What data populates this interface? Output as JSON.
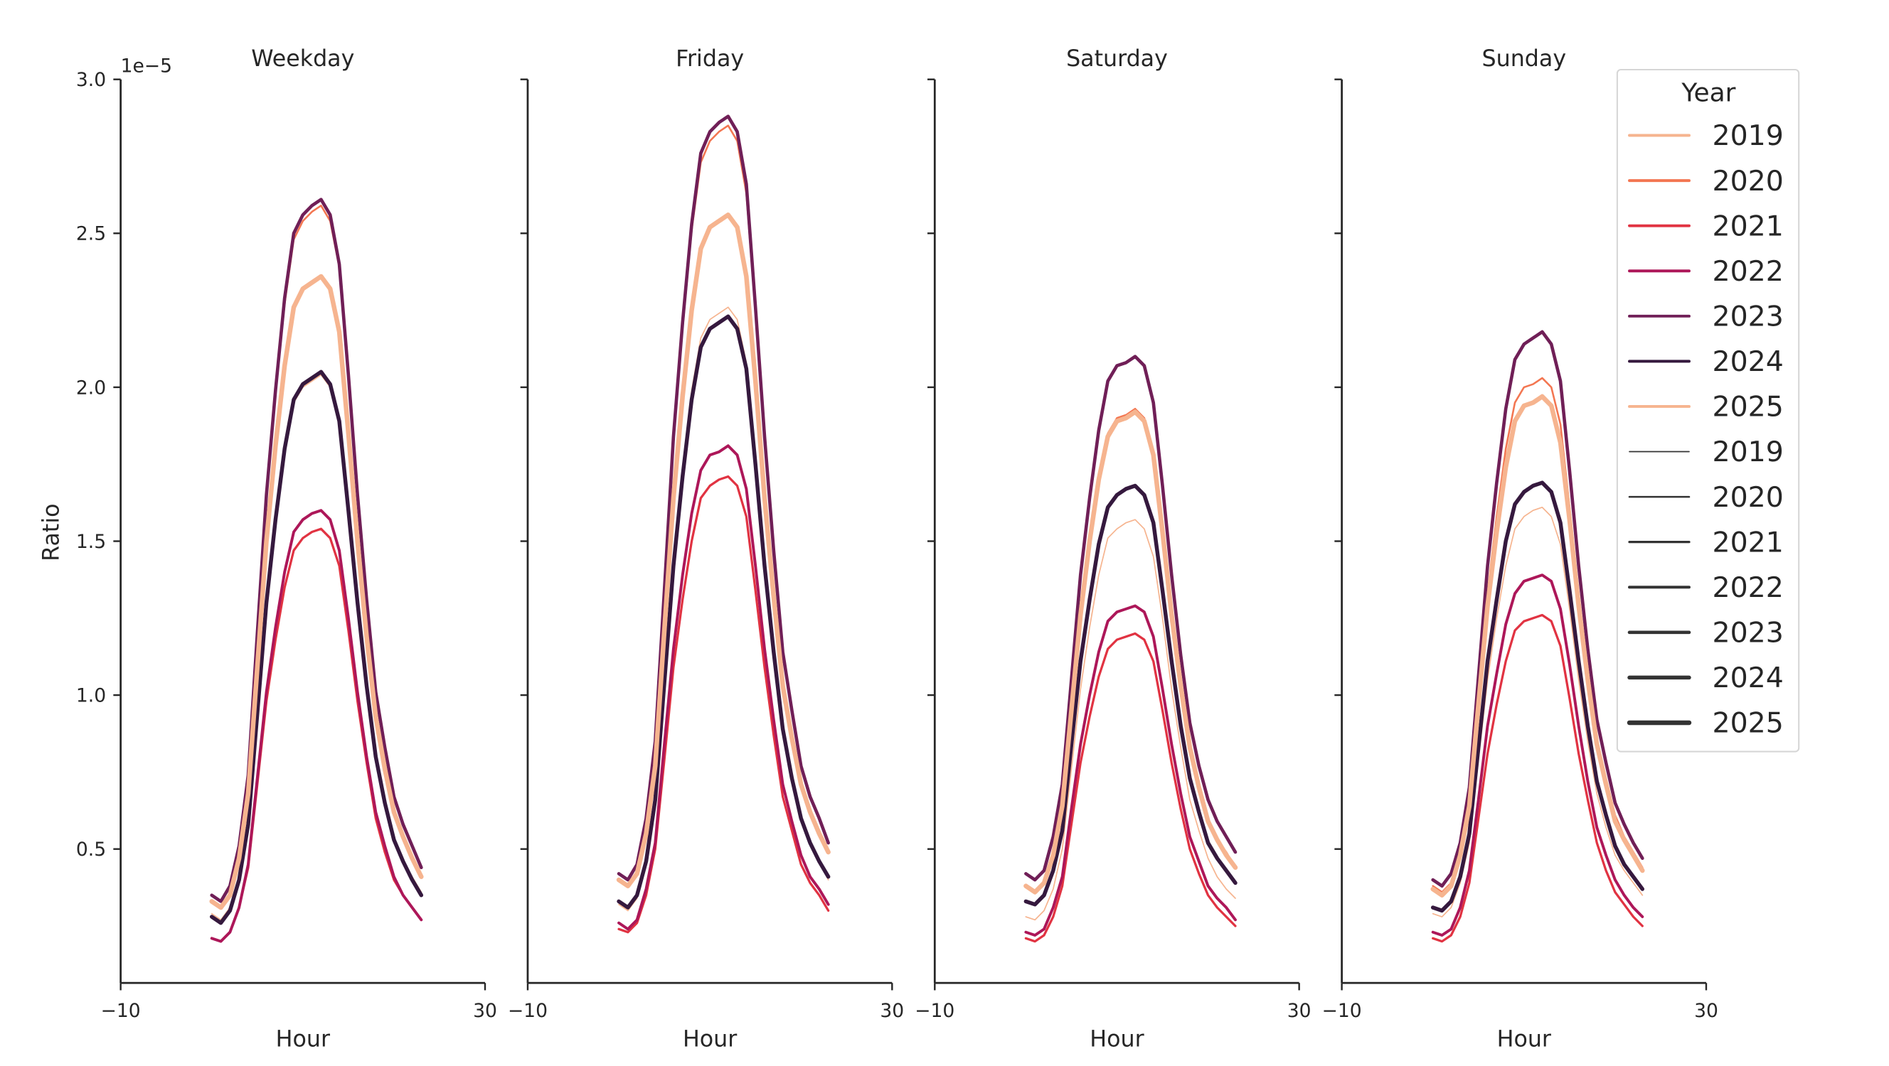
{
  "chart_data": {
    "type": "line",
    "ylabel": "Ratio",
    "xlabel": "Hour",
    "y_offset_label": "1e−5",
    "xlim": [
      -10,
      30
    ],
    "ylim": [
      0.065,
      3.0
    ],
    "xticks": [
      "−10",
      "30"
    ],
    "xtick_values": [
      -10,
      30
    ],
    "yticks": [
      "0.5",
      "1.0",
      "1.5",
      "2.0",
      "2.5",
      "3.0"
    ],
    "ytick_values": [
      0.5,
      1.0,
      1.5,
      2.0,
      2.5,
      3.0
    ],
    "grid": false,
    "legend": {
      "title": "Year",
      "placement": "top-right",
      "hue_entries": [
        {
          "label": "2019",
          "color": "#f6b48f"
        },
        {
          "label": "2020",
          "color": "#f37651"
        },
        {
          "label": "2021",
          "color": "#e13342"
        },
        {
          "label": "2022",
          "color": "#ad1759"
        },
        {
          "label": "2023",
          "color": "#701f57"
        },
        {
          "label": "2024",
          "color": "#35193e"
        },
        {
          "label": "2025",
          "color": "#f6b48f"
        }
      ],
      "size_entries": [
        {
          "label": "2019",
          "color": "#333333"
        },
        {
          "label": "2020",
          "color": "#333333"
        },
        {
          "label": "2021",
          "color": "#333333"
        },
        {
          "label": "2022",
          "color": "#333333"
        },
        {
          "label": "2023",
          "color": "#333333"
        },
        {
          "label": "2024",
          "color": "#333333"
        },
        {
          "label": "2025",
          "color": "#333333"
        }
      ]
    },
    "x": [
      0,
      1,
      2,
      3,
      4,
      5,
      6,
      7,
      8,
      9,
      10,
      11,
      12,
      13,
      14,
      15,
      16,
      17,
      18,
      19,
      20,
      21,
      22,
      23
    ],
    "panels": [
      {
        "title": "Weekday",
        "series": [
          {
            "name": "2019",
            "values": [
              0.29,
              0.27,
              0.31,
              0.41,
              0.59,
              0.94,
              1.3,
              1.56,
              1.79,
              1.95,
              2.0,
              2.02,
              2.04,
              2.0,
              1.88,
              1.6,
              1.3,
              1.03,
              0.8,
              0.66,
              0.54,
              0.46,
              0.41,
              0.36
            ]
          },
          {
            "name": "2020",
            "values": [
              0.35,
              0.33,
              0.38,
              0.51,
              0.74,
              1.19,
              1.64,
              1.98,
              2.27,
              2.48,
              2.54,
              2.57,
              2.59,
              2.54,
              2.39,
              2.03,
              1.64,
              1.3,
              1.01,
              0.83,
              0.67,
              0.58,
              0.51,
              0.44
            ]
          },
          {
            "name": "2021",
            "values": [
              0.21,
              0.2,
              0.23,
              0.31,
              0.44,
              0.71,
              0.98,
              1.18,
              1.35,
              1.47,
              1.51,
              1.53,
              1.54,
              1.51,
              1.42,
              1.21,
              0.98,
              0.78,
              0.6,
              0.49,
              0.4,
              0.35,
              0.31,
              0.27
            ]
          },
          {
            "name": "2022",
            "values": [
              0.21,
              0.2,
              0.23,
              0.31,
              0.45,
              0.73,
              1.01,
              1.22,
              1.4,
              1.53,
              1.57,
              1.59,
              1.6,
              1.57,
              1.47,
              1.25,
              1.01,
              0.8,
              0.62,
              0.51,
              0.41,
              0.35,
              0.31,
              0.27
            ]
          },
          {
            "name": "2023",
            "values": [
              0.35,
              0.33,
              0.38,
              0.51,
              0.74,
              1.2,
              1.65,
              1.99,
              2.29,
              2.5,
              2.56,
              2.59,
              2.61,
              2.56,
              2.4,
              2.04,
              1.65,
              1.31,
              1.01,
              0.83,
              0.67,
              0.58,
              0.51,
              0.44
            ]
          },
          {
            "name": "2024",
            "values": [
              0.28,
              0.26,
              0.3,
              0.4,
              0.58,
              0.94,
              1.3,
              1.57,
              1.8,
              1.96,
              2.01,
              2.03,
              2.05,
              2.01,
              1.89,
              1.6,
              1.3,
              1.03,
              0.8,
              0.65,
              0.53,
              0.46,
              0.4,
              0.35
            ]
          },
          {
            "name": "2025",
            "values": [
              0.33,
              0.31,
              0.35,
              0.47,
              0.68,
              1.09,
              1.5,
              1.81,
              2.07,
              2.26,
              2.32,
              2.34,
              2.36,
              2.32,
              2.18,
              1.85,
              1.5,
              1.19,
              0.93,
              0.76,
              0.62,
              0.54,
              0.47,
              0.41
            ]
          }
        ]
      },
      {
        "title": "Friday",
        "series": [
          {
            "name": "2019",
            "values": [
              0.32,
              0.3,
              0.34,
              0.46,
              0.65,
              1.04,
              1.44,
              1.73,
              1.99,
              2.16,
              2.22,
              2.24,
              2.26,
              2.22,
              2.08,
              1.77,
              1.44,
              1.14,
              0.89,
              0.73,
              0.59,
              0.52,
              0.46,
              0.4
            ]
          },
          {
            "name": "2020",
            "values": [
              0.42,
              0.4,
              0.45,
              0.6,
              0.84,
              1.33,
              1.82,
              2.19,
              2.51,
              2.73,
              2.8,
              2.83,
              2.85,
              2.8,
              2.63,
              2.24,
              1.82,
              1.45,
              1.14,
              0.94,
              0.77,
              0.67,
              0.6,
              0.52
            ]
          },
          {
            "name": "2021",
            "values": [
              0.24,
              0.23,
              0.26,
              0.35,
              0.5,
              0.79,
              1.09,
              1.31,
              1.5,
              1.64,
              1.68,
              1.7,
              1.71,
              1.68,
              1.58,
              1.34,
              1.09,
              0.87,
              0.67,
              0.56,
              0.45,
              0.39,
              0.35,
              0.3
            ]
          },
          {
            "name": "2022",
            "values": [
              0.26,
              0.24,
              0.27,
              0.37,
              0.52,
              0.84,
              1.15,
              1.39,
              1.59,
              1.73,
              1.78,
              1.79,
              1.81,
              1.78,
              1.67,
              1.42,
              1.15,
              0.92,
              0.71,
              0.59,
              0.48,
              0.41,
              0.37,
              0.32
            ]
          },
          {
            "name": "2023",
            "values": [
              0.42,
              0.4,
              0.45,
              0.6,
              0.85,
              1.34,
              1.84,
              2.21,
              2.53,
              2.76,
              2.83,
              2.86,
              2.88,
              2.83,
              2.66,
              2.26,
              1.84,
              1.47,
              1.14,
              0.95,
              0.77,
              0.67,
              0.6,
              0.52
            ]
          },
          {
            "name": "2024",
            "values": [
              0.33,
              0.31,
              0.35,
              0.46,
              0.66,
              1.04,
              1.42,
              1.71,
              1.96,
              2.13,
              2.19,
              2.21,
              2.23,
              2.19,
              2.06,
              1.75,
              1.42,
              1.14,
              0.89,
              0.73,
              0.6,
              0.52,
              0.46,
              0.41
            ]
          },
          {
            "name": "2025",
            "values": [
              0.4,
              0.38,
              0.42,
              0.55,
              0.77,
              1.21,
              1.64,
              1.97,
              2.25,
              2.45,
              2.52,
              2.54,
              2.56,
              2.52,
              2.36,
              2.02,
              1.64,
              1.32,
              1.03,
              0.86,
              0.71,
              0.62,
              0.55,
              0.49
            ]
          }
        ]
      },
      {
        "title": "Saturday",
        "series": [
          {
            "name": "2019",
            "values": [
              0.28,
              0.27,
              0.3,
              0.37,
              0.5,
              0.76,
              1.02,
              1.22,
              1.39,
              1.51,
              1.54,
              1.56,
              1.57,
              1.54,
              1.45,
              1.25,
              1.02,
              0.83,
              0.66,
              0.56,
              0.47,
              0.41,
              0.37,
              0.34
            ]
          },
          {
            "name": "2020",
            "values": [
              0.38,
              0.36,
              0.39,
              0.49,
              0.64,
              0.96,
              1.27,
              1.51,
              1.71,
              1.85,
              1.9,
              1.91,
              1.93,
              1.9,
              1.79,
              1.54,
              1.27,
              1.04,
              0.83,
              0.71,
              0.6,
              0.53,
              0.49,
              0.44
            ]
          },
          {
            "name": "2021",
            "values": [
              0.21,
              0.2,
              0.22,
              0.28,
              0.38,
              0.58,
              0.78,
              0.93,
              1.06,
              1.15,
              1.18,
              1.19,
              1.2,
              1.18,
              1.11,
              0.95,
              0.78,
              0.63,
              0.5,
              0.42,
              0.35,
              0.31,
              0.28,
              0.25
            ]
          },
          {
            "name": "2022",
            "values": [
              0.23,
              0.22,
              0.24,
              0.31,
              0.41,
              0.63,
              0.84,
              1.0,
              1.14,
              1.24,
              1.27,
              1.28,
              1.29,
              1.27,
              1.19,
              1.02,
              0.84,
              0.68,
              0.54,
              0.46,
              0.38,
              0.34,
              0.31,
              0.27
            ]
          },
          {
            "name": "2023",
            "values": [
              0.42,
              0.4,
              0.43,
              0.54,
              0.71,
              1.05,
              1.39,
              1.64,
              1.86,
              2.02,
              2.07,
              2.08,
              2.1,
              2.07,
              1.95,
              1.68,
              1.39,
              1.13,
              0.91,
              0.77,
              0.66,
              0.59,
              0.54,
              0.49
            ]
          },
          {
            "name": "2024",
            "values": [
              0.33,
              0.32,
              0.35,
              0.43,
              0.56,
              0.84,
              1.11,
              1.31,
              1.49,
              1.61,
              1.65,
              1.67,
              1.68,
              1.65,
              1.56,
              1.34,
              1.11,
              0.9,
              0.73,
              0.62,
              0.52,
              0.47,
              0.43,
              0.39
            ]
          },
          {
            "name": "2025",
            "values": [
              0.38,
              0.36,
              0.39,
              0.48,
              0.64,
              0.95,
              1.26,
              1.5,
              1.7,
              1.84,
              1.89,
              1.9,
              1.92,
              1.89,
              1.78,
              1.53,
              1.26,
              1.03,
              0.83,
              0.7,
              0.59,
              0.53,
              0.48,
              0.44
            ]
          }
        ]
      },
      {
        "title": "Sunday",
        "series": [
          {
            "name": "2019",
            "values": [
              0.29,
              0.28,
              0.31,
              0.39,
              0.52,
              0.79,
              1.05,
              1.25,
              1.42,
              1.54,
              1.58,
              1.6,
              1.61,
              1.58,
              1.49,
              1.28,
              1.05,
              0.85,
              0.68,
              0.57,
              0.48,
              0.43,
              0.39,
              0.35
            ]
          },
          {
            "name": "2020",
            "values": [
              0.38,
              0.36,
              0.39,
              0.49,
              0.66,
              1.01,
              1.33,
              1.58,
              1.8,
              1.95,
              2.0,
              2.01,
              2.03,
              2.0,
              1.88,
              1.61,
              1.33,
              1.08,
              0.86,
              0.73,
              0.61,
              0.54,
              0.49,
              0.44
            ]
          },
          {
            "name": "2021",
            "values": [
              0.21,
              0.2,
              0.22,
              0.28,
              0.39,
              0.6,
              0.81,
              0.97,
              1.11,
              1.21,
              1.24,
              1.25,
              1.26,
              1.24,
              1.16,
              0.99,
              0.81,
              0.66,
              0.52,
              0.43,
              0.36,
              0.32,
              0.28,
              0.25
            ]
          },
          {
            "name": "2022",
            "values": [
              0.23,
              0.22,
              0.24,
              0.31,
              0.43,
              0.66,
              0.9,
              1.07,
              1.23,
              1.33,
              1.37,
              1.38,
              1.39,
              1.37,
              1.28,
              1.1,
              0.9,
              0.72,
              0.57,
              0.48,
              0.4,
              0.35,
              0.31,
              0.28
            ]
          },
          {
            "name": "2023",
            "values": [
              0.4,
              0.38,
              0.42,
              0.52,
              0.7,
              1.06,
              1.42,
              1.69,
              1.93,
              2.09,
              2.14,
              2.16,
              2.18,
              2.14,
              2.02,
              1.73,
              1.42,
              1.15,
              0.92,
              0.78,
              0.65,
              0.58,
              0.52,
              0.47
            ]
          },
          {
            "name": "2024",
            "values": [
              0.31,
              0.3,
              0.33,
              0.41,
              0.55,
              0.83,
              1.11,
              1.31,
              1.5,
              1.62,
              1.66,
              1.68,
              1.69,
              1.66,
              1.56,
              1.34,
              1.11,
              0.9,
              0.72,
              0.61,
              0.51,
              0.45,
              0.41,
              0.37
            ]
          },
          {
            "name": "2025",
            "values": [
              0.37,
              0.35,
              0.38,
              0.48,
              0.64,
              0.97,
              1.29,
              1.53,
              1.74,
              1.89,
              1.94,
              1.95,
              1.97,
              1.94,
              1.82,
              1.57,
              1.29,
              1.05,
              0.84,
              0.71,
              0.59,
              0.53,
              0.48,
              0.43
            ]
          }
        ]
      }
    ]
  }
}
